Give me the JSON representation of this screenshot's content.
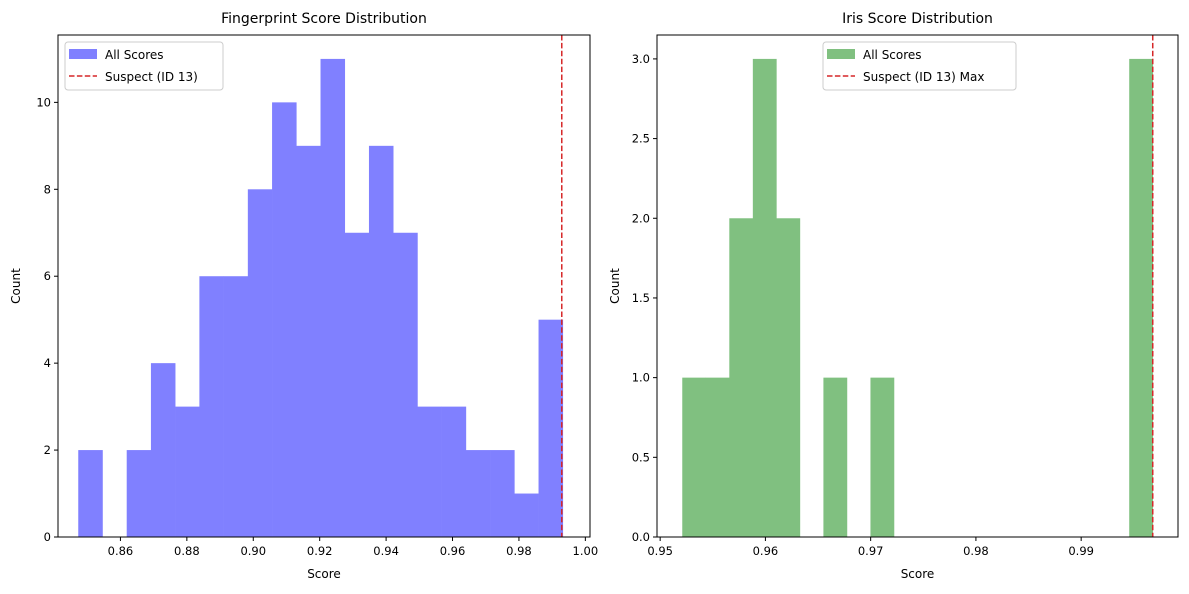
{
  "chart_data": [
    {
      "type": "bar",
      "title": "Fingerprint Score Distribution",
      "xlabel": "Score",
      "ylabel": "Count",
      "xlim": [
        0.8412,
        1.0014
      ],
      "ylim": [
        0,
        11.55
      ],
      "xticks": [
        0.86,
        0.88,
        0.9,
        0.92,
        0.94,
        0.96,
        0.98,
        1.0
      ],
      "xtick_labels": [
        "0.86",
        "0.88",
        "0.90",
        "0.92",
        "0.94",
        "0.96",
        "0.98",
        "1.00"
      ],
      "yticks": [
        0,
        2,
        4,
        6,
        8,
        10
      ],
      "ytick_labels": [
        "0",
        "2",
        "4",
        "6",
        "8",
        "10"
      ],
      "bin_start": 0.8473,
      "bin_end": 0.9932,
      "values": [
        2,
        0,
        2,
        4,
        3,
        6,
        6,
        8,
        10,
        9,
        11,
        7,
        9,
        7,
        3,
        3,
        2,
        2,
        1,
        5
      ],
      "bar_color": "#8080ff",
      "suspect_line": 0.9929,
      "line_color": "#d62728",
      "legend": [
        "All Scores",
        "Suspect (ID 13)"
      ],
      "legend_position": "upper left",
      "grid": false
    },
    {
      "type": "bar",
      "title": "Iris Score Distribution",
      "xlabel": "Score",
      "ylabel": "Count",
      "xlim": [
        0.9497,
        0.9992
      ],
      "ylim": [
        0,
        3.15
      ],
      "xticks": [
        0.95,
        0.96,
        0.97,
        0.98,
        0.99
      ],
      "xtick_labels": [
        "0.95",
        "0.96",
        "0.97",
        "0.98",
        "0.99"
      ],
      "yticks": [
        0,
        0.5,
        1.0,
        1.5,
        2.0,
        2.5,
        3.0
      ],
      "ytick_labels": [
        "0.0",
        "0.5",
        "1.0",
        "1.5",
        "2.0",
        "2.5",
        "3.0"
      ],
      "bin_start": 0.9521,
      "bin_end": 0.9968,
      "values": [
        1,
        1,
        2,
        3,
        2,
        0,
        1,
        0,
        1,
        0,
        0,
        0,
        0,
        0,
        0,
        0,
        0,
        0,
        0,
        3
      ],
      "bar_color": "#80c080",
      "suspect_line": 0.9968,
      "line_color": "#d62728",
      "legend": [
        "All Scores",
        "Suspect (ID 13) Max"
      ],
      "legend_position": "upper center",
      "grid": false
    }
  ]
}
